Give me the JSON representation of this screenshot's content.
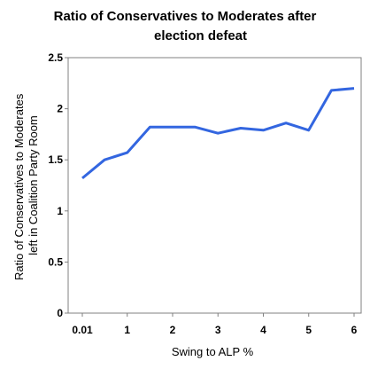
{
  "chart_data": {
    "type": "line",
    "title_line1": "Ratio of Conservatives to Moderates after",
    "title_line2": "election defeat",
    "xlabel": "Swing to ALP %",
    "ylabel_line1": "Ratio of Conservatives to Moderates",
    "ylabel_line2": "left in Coalition Party Room",
    "ylim": [
      0,
      2.5
    ],
    "y_ticks": [
      "0",
      "0.5",
      "1",
      "1.5",
      "2",
      "2.5"
    ],
    "x_tick_labels": [
      "0.01",
      "1",
      "2",
      "3",
      "4",
      "5",
      "6"
    ],
    "grid": false,
    "legend": "none",
    "line_color": "#3366e0",
    "series": [
      {
        "x": [
          0.01,
          0.5,
          1,
          1.5,
          2,
          2.5,
          3,
          3.5,
          4,
          4.5,
          5,
          5.5,
          6
        ],
        "values": [
          1.32,
          1.5,
          1.57,
          1.82,
          1.82,
          1.82,
          1.76,
          1.81,
          1.79,
          1.86,
          1.79,
          2.18,
          2.2
        ]
      }
    ]
  }
}
